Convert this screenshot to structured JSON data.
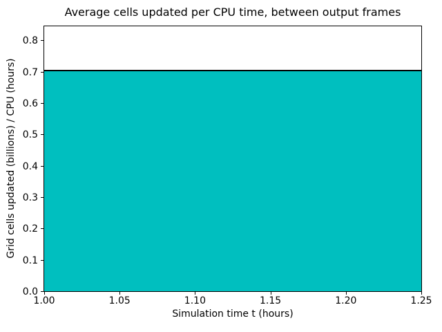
{
  "chart_data": {
    "type": "area",
    "title": "Average cells updated per CPU time, between output frames",
    "xlabel": "Simulation time t (hours)",
    "ylabel": "Grid cells updated (billions) / CPU (hours)",
    "x": [
      1.0,
      1.25
    ],
    "values": [
      0.707,
      0.707
    ],
    "xlim": [
      1.0,
      1.25
    ],
    "ylim": [
      0,
      0.845
    ],
    "x_ticks": [
      1.0,
      1.05,
      1.1,
      1.15,
      1.2,
      1.25
    ],
    "x_tick_labels": [
      "1.00",
      "1.05",
      "1.10",
      "1.15",
      "1.20",
      "1.25"
    ],
    "y_ticks": [
      0.0,
      0.1,
      0.2,
      0.3,
      0.4,
      0.5,
      0.6,
      0.7,
      0.8
    ],
    "y_tick_labels": [
      "0.0",
      "0.1",
      "0.2",
      "0.3",
      "0.4",
      "0.5",
      "0.6",
      "0.7",
      "0.8"
    ],
    "fill_color": "#00BFBF",
    "line_color": "#000000",
    "grid": false,
    "legend": null
  }
}
